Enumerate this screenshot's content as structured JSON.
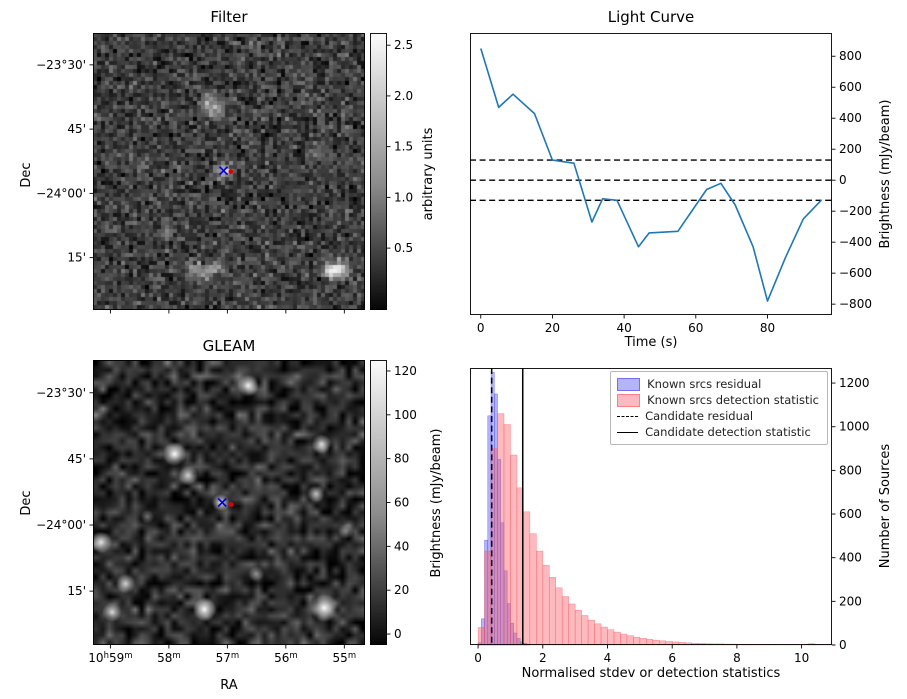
{
  "figure": {
    "background": "#ffffff"
  },
  "chart_data": [
    {
      "type": "heatmap",
      "title": "Filter",
      "ylabel": "Dec",
      "yticks": [
        "−23°30'",
        "45'",
        "−24°00'",
        "15'"
      ],
      "colorbar": {
        "label": "arbitrary units",
        "vmin": -0.11,
        "vmax": 2.62,
        "ticks": [
          {
            "v": 2.5,
            "label": "2.5"
          },
          {
            "v": 2.0,
            "label": "2.0"
          },
          {
            "v": 1.5,
            "label": "1.5"
          },
          {
            "v": 1.0,
            "label": "1.0"
          },
          {
            "v": 0.5,
            "label": "0.5"
          }
        ]
      },
      "markers": {
        "cross": {
          "fx": 0.48,
          "fy": 0.497,
          "color": "#0000dd"
        },
        "dot": {
          "fx": 0.507,
          "fy": 0.5,
          "color": "#dd0000"
        }
      },
      "sources": [
        {
          "x": 0.42,
          "y": 0.25,
          "amp": 1.0,
          "sigma": 0.02
        },
        {
          "x": 0.46,
          "y": 0.255,
          "amp": 0.85,
          "sigma": 0.018
        },
        {
          "x": 0.44,
          "y": 0.28,
          "amp": 0.7,
          "sigma": 0.016
        },
        {
          "x": 0.485,
          "y": 0.497,
          "amp": 1.5,
          "sigma": 0.02
        },
        {
          "x": 0.17,
          "y": 0.47,
          "amp": 0.55,
          "sigma": 0.016
        },
        {
          "x": 0.82,
          "y": 0.42,
          "amp": 0.6,
          "sigma": 0.016
        },
        {
          "x": 0.27,
          "y": 0.71,
          "amp": 0.7,
          "sigma": 0.018
        },
        {
          "x": 0.37,
          "y": 0.845,
          "amp": 1.1,
          "sigma": 0.02
        },
        {
          "x": 0.42,
          "y": 0.855,
          "amp": 0.95,
          "sigma": 0.018
        },
        {
          "x": 0.46,
          "y": 0.84,
          "amp": 0.8,
          "sigma": 0.016
        },
        {
          "x": 0.875,
          "y": 0.845,
          "amp": 1.7,
          "sigma": 0.022
        },
        {
          "x": 0.915,
          "y": 0.85,
          "amp": 1.5,
          "sigma": 0.019
        }
      ]
    },
    {
      "type": "line",
      "title": "Light Curve",
      "xlabel": "Time (s)",
      "ylabel": "Brightness (mJy/beam)",
      "line_color": "#1f77b4",
      "x": [
        0,
        5,
        9,
        15,
        20,
        26,
        31,
        34,
        38,
        44,
        47,
        55,
        63,
        67,
        71,
        76,
        80,
        85,
        90,
        95
      ],
      "y": [
        850,
        470,
        555,
        430,
        130,
        110,
        -270,
        -120,
        -130,
        -430,
        -340,
        -330,
        -60,
        -20,
        -160,
        -430,
        -780,
        -500,
        -250,
        -130
      ],
      "dashed_hlines": [
        130,
        0,
        -130
      ],
      "xlim": [
        -3,
        98
      ],
      "ylim": [
        -870,
        950
      ],
      "xticks": [
        {
          "v": 0,
          "label": "0"
        },
        {
          "v": 20,
          "label": "20"
        },
        {
          "v": 40,
          "label": "40"
        },
        {
          "v": 60,
          "label": "60"
        },
        {
          "v": 80,
          "label": "80"
        }
      ],
      "yticks": [
        {
          "v": 800,
          "label": "800"
        },
        {
          "v": 600,
          "label": "600"
        },
        {
          "v": 400,
          "label": "400"
        },
        {
          "v": 200,
          "label": "200"
        },
        {
          "v": 0,
          "label": "0"
        },
        {
          "v": -200,
          "label": "−200"
        },
        {
          "v": -400,
          "label": "−400"
        },
        {
          "v": -600,
          "label": "−600"
        },
        {
          "v": -800,
          "label": "−800"
        }
      ]
    },
    {
      "type": "heatmap",
      "title": "GLEAM",
      "xlabel": "RA",
      "ylabel": "Dec",
      "xticks": [
        "10h59m",
        "58m",
        "57m",
        "56m",
        "55m"
      ],
      "yticks": [
        "−23°30'",
        "45'",
        "−24°00'",
        "15'"
      ],
      "colorbar": {
        "label": "Brightness (mJy/beam)",
        "vmin": -5,
        "vmax": 125,
        "ticks": [
          {
            "v": 120,
            "label": "120"
          },
          {
            "v": 100,
            "label": "100"
          },
          {
            "v": 80,
            "label": "80"
          },
          {
            "v": 60,
            "label": "60"
          },
          {
            "v": 40,
            "label": "40"
          },
          {
            "v": 20,
            "label": "20"
          },
          {
            "v": 0,
            "label": "0"
          }
        ]
      },
      "markers": {
        "cross": {
          "fx": 0.475,
          "fy": 0.5,
          "color": "#0000dd"
        },
        "dot": {
          "fx": 0.508,
          "fy": 0.507,
          "color": "#dd0000"
        }
      },
      "sources": [
        {
          "x": 0.57,
          "y": 0.09,
          "amp": 0.95,
          "r": 11
        },
        {
          "x": 0.3,
          "y": 0.33,
          "amp": 1.0,
          "r": 12
        },
        {
          "x": 0.35,
          "y": 0.405,
          "amp": 0.8,
          "r": 10
        },
        {
          "x": 0.84,
          "y": 0.295,
          "amp": 0.85,
          "r": 10
        },
        {
          "x": 0.47,
          "y": 0.5,
          "amp": 0.9,
          "r": 9
        },
        {
          "x": 0.82,
          "y": 0.47,
          "amp": 0.7,
          "r": 9
        },
        {
          "x": 0.03,
          "y": 0.64,
          "amp": 0.9,
          "r": 11
        },
        {
          "x": 0.12,
          "y": 0.785,
          "amp": 0.8,
          "r": 10
        },
        {
          "x": 0.41,
          "y": 0.875,
          "amp": 1.0,
          "r": 12
        },
        {
          "x": 0.85,
          "y": 0.87,
          "amp": 1.0,
          "r": 14
        },
        {
          "x": 0.07,
          "y": 0.885,
          "amp": 0.85,
          "r": 10
        },
        {
          "x": 0.6,
          "y": 0.75,
          "amp": 0.5,
          "r": 8
        },
        {
          "x": 0.93,
          "y": 0.6,
          "amp": 0.45,
          "r": 8
        },
        {
          "x": 0.2,
          "y": 0.55,
          "amp": 0.4,
          "r": 7
        }
      ]
    },
    {
      "type": "histogram",
      "xlabel": "Normalised stdev or detection statistics",
      "ylabel": "Number of Sources",
      "xlim": [
        -0.25,
        10.94
      ],
      "ylim": [
        0,
        1269
      ],
      "xticks": [
        {
          "v": 0,
          "label": "0"
        },
        {
          "v": 2,
          "label": "2"
        },
        {
          "v": 4,
          "label": "4"
        },
        {
          "v": 6,
          "label": "6"
        },
        {
          "v": 8,
          "label": "8"
        },
        {
          "v": 10,
          "label": "10"
        }
      ],
      "yticks": [
        {
          "v": 0,
          "label": "0"
        },
        {
          "v": 200,
          "label": "200"
        },
        {
          "v": 400,
          "label": "400"
        },
        {
          "v": 600,
          "label": "600"
        },
        {
          "v": 800,
          "label": "800"
        },
        {
          "v": 1000,
          "label": "1000"
        },
        {
          "v": 1200,
          "label": "1200"
        }
      ],
      "series": [
        {
          "name": "Known srcs residual",
          "fill": "#3a3af0",
          "opacity": 0.38,
          "bin_start": 0,
          "bin_width": 0.1,
          "values": [
            10,
            120,
            480,
            1050,
            1250,
            1150,
            850,
            560,
            340,
            190,
            100,
            55,
            30,
            15,
            8,
            4
          ]
        },
        {
          "name": "Known srcs detection statistic",
          "fill": "#fa5a64",
          "opacity": 0.42,
          "bin_start": 0,
          "bin_width": 0.2,
          "values": [
            80,
            430,
            900,
            1060,
            1010,
            870,
            720,
            610,
            510,
            430,
            365,
            310,
            262,
            222,
            188,
            159,
            135,
            114,
            97,
            82,
            70,
            59,
            50,
            43,
            36,
            31,
            26,
            22,
            19,
            16,
            14,
            12,
            10,
            8,
            7,
            6,
            5,
            5,
            4,
            4,
            3,
            3,
            2,
            2,
            2,
            2,
            1,
            1,
            1,
            1,
            1,
            6,
            3,
            1,
            2
          ]
        }
      ],
      "vlines": [
        {
          "label": "Candidate residual",
          "style": "dashed",
          "x": 0.42
        },
        {
          "label": "Candidate detection statistic",
          "style": "solid",
          "x": 1.38
        }
      ]
    }
  ]
}
